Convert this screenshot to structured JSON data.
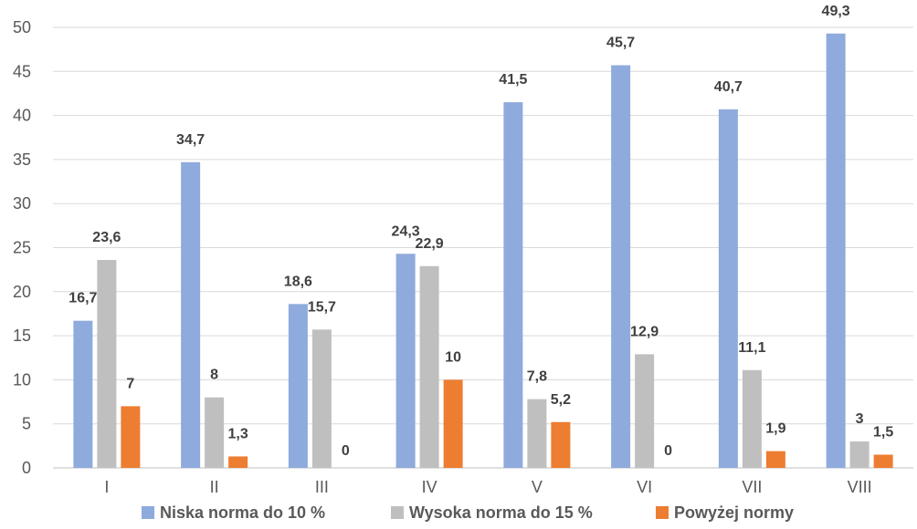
{
  "chart_data": {
    "type": "bar",
    "categories": [
      "I",
      "II",
      "III",
      "IV",
      "V",
      "VI",
      "VII",
      "VIII"
    ],
    "series": [
      {
        "name": "Niska norma do 10 %",
        "color": "#8faadc",
        "values": [
          16.7,
          34.7,
          18.6,
          24.3,
          41.5,
          45.7,
          40.7,
          49.3
        ],
        "labels": [
          "16,7",
          "34,7",
          "18,6",
          "24,3",
          "41,5",
          "45,7",
          "40,7",
          "49,3"
        ]
      },
      {
        "name": "Wysoka norma do 15 %",
        "color": "#bfbfbf",
        "values": [
          23.6,
          8,
          15.7,
          22.9,
          7.8,
          12.9,
          11.1,
          3
        ],
        "labels": [
          "23,6",
          "8",
          "15,7",
          "22,9",
          "7,8",
          "12,9",
          "11,1",
          "3"
        ]
      },
      {
        "name": "Powyżej normy",
        "color": "#ed7d31",
        "values": [
          7,
          1.3,
          0,
          10,
          5.2,
          0,
          1.9,
          1.5
        ],
        "labels": [
          "7",
          "1,3",
          "0",
          "10",
          "5,2",
          "0",
          "1,9",
          "1,5"
        ]
      }
    ],
    "ylim": [
      0,
      50
    ],
    "yticks": [
      "0",
      "5",
      "10",
      "15",
      "20",
      "25",
      "30",
      "35",
      "40",
      "45",
      "50"
    ],
    "grid": true,
    "legend_position": "bottom"
  }
}
